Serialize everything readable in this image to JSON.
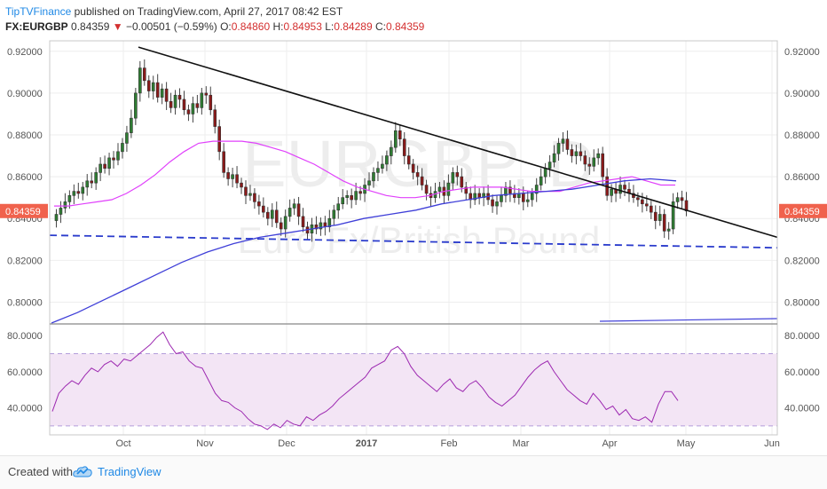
{
  "header": {
    "author": "TipTVFinance",
    "published": "published on TradingView.com, April 27, 2017 08:42 EST",
    "symbol": "FX:EURGBP",
    "last": "0.84359",
    "change": "−0.00501 (−0.59%)",
    "open_label": "O:",
    "open": "0.84860",
    "high_label": "H:",
    "high": "0.84953",
    "low_label": "L:",
    "low": "0.84289",
    "close_label": "C:",
    "close": "0.84359"
  },
  "watermark": {
    "symbol": "EURGBP, D",
    "name": "Euro Fx/British Pound"
  },
  "footer": {
    "created": "Created with",
    "brand": "TradingView"
  },
  "colors": {
    "up": "#2e7d32",
    "down": "#8b1a1a",
    "trendline": "#111111",
    "ma50": "#e040fb",
    "ma200": "#3f3fd8",
    "support": "#2a3bcc",
    "rsi": "#9c27b0",
    "price_tag": "#f0624d"
  },
  "chart_data": [
    {
      "type": "candlestick",
      "title": "FX:EURGBP, D",
      "x_ticks": [
        "Oct",
        "Nov",
        "Dec",
        "2017",
        "Feb",
        "Mar",
        "Apr",
        "May",
        "Jun"
      ],
      "y_ticks": [
        "0.80000",
        "0.82000",
        "0.84000",
        "0.86000",
        "0.88000",
        "0.90000",
        "0.92000"
      ],
      "ylim": [
        0.79,
        0.925
      ],
      "last_price_label": "0.84359",
      "close_series": [
        0.842,
        0.845,
        0.848,
        0.851,
        0.853,
        0.852,
        0.855,
        0.858,
        0.857,
        0.862,
        0.866,
        0.864,
        0.869,
        0.868,
        0.872,
        0.876,
        0.881,
        0.888,
        0.9,
        0.912,
        0.906,
        0.901,
        0.905,
        0.898,
        0.902,
        0.896,
        0.893,
        0.899,
        0.897,
        0.892,
        0.89,
        0.895,
        0.893,
        0.9,
        0.899,
        0.892,
        0.884,
        0.872,
        0.862,
        0.859,
        0.861,
        0.857,
        0.855,
        0.851,
        0.852,
        0.848,
        0.846,
        0.843,
        0.84,
        0.844,
        0.838,
        0.835,
        0.841,
        0.845,
        0.847,
        0.841,
        0.836,
        0.833,
        0.837,
        0.835,
        0.838,
        0.836,
        0.84,
        0.844,
        0.847,
        0.85,
        0.851,
        0.849,
        0.853,
        0.852,
        0.856,
        0.858,
        0.862,
        0.864,
        0.866,
        0.87,
        0.874,
        0.882,
        0.878,
        0.87,
        0.866,
        0.862,
        0.86,
        0.856,
        0.852,
        0.85,
        0.853,
        0.855,
        0.851,
        0.857,
        0.862,
        0.86,
        0.855,
        0.852,
        0.849,
        0.852,
        0.85,
        0.852,
        0.849,
        0.846,
        0.848,
        0.851,
        0.855,
        0.852,
        0.85,
        0.852,
        0.848,
        0.849,
        0.852,
        0.856,
        0.86,
        0.864,
        0.867,
        0.871,
        0.876,
        0.878,
        0.873,
        0.87,
        0.872,
        0.87,
        0.866,
        0.865,
        0.869,
        0.871,
        0.86,
        0.851,
        0.854,
        0.852,
        0.856,
        0.854,
        0.852,
        0.85,
        0.849,
        0.847,
        0.846,
        0.843,
        0.839,
        0.842,
        0.834,
        0.835,
        0.848,
        0.85,
        0.8486,
        0.84359
      ],
      "series": [
        {
          "name": "MA 50",
          "role": "ma50",
          "values": [
            0.846,
            0.846,
            0.847,
            0.848,
            0.849,
            0.852,
            0.856,
            0.861,
            0.867,
            0.872,
            0.876,
            0.877,
            0.877,
            0.877,
            0.876,
            0.874,
            0.872,
            0.869,
            0.866,
            0.862,
            0.858,
            0.855,
            0.853,
            0.851,
            0.85,
            0.85,
            0.851,
            0.853,
            0.854,
            0.855,
            0.855,
            0.855,
            0.854,
            0.853,
            0.853,
            0.853,
            0.855,
            0.857,
            0.858,
            0.859,
            0.86,
            0.858,
            0.856,
            0.856
          ]
        },
        {
          "name": "MA 200",
          "role": "ma200",
          "values": [
            0.79,
            0.795,
            0.801,
            0.807,
            0.813,
            0.819,
            0.824,
            0.828,
            0.831,
            0.833,
            0.835,
            0.837,
            0.84,
            0.842,
            0.844,
            0.847,
            0.849,
            0.851,
            0.852,
            0.853,
            0.854,
            0.856,
            0.858,
            0.859,
            0.858
          ]
        },
        {
          "name": "Trendline",
          "role": "trend",
          "values": [
            0.922,
            0.831
          ]
        },
        {
          "name": "Support",
          "role": "support",
          "values": [
            0.832,
            0.826
          ]
        }
      ]
    },
    {
      "type": "line",
      "title": "RSI",
      "y_ticks": [
        "40.0000",
        "60.0000",
        "80.0000"
      ],
      "ylim": [
        25,
        86
      ],
      "band": [
        30,
        70
      ],
      "series": [
        {
          "name": "RSI",
          "values": [
            38,
            48,
            52,
            55,
            53,
            58,
            62,
            60,
            64,
            66,
            63,
            67,
            66,
            69,
            72,
            75,
            79,
            82,
            75,
            70,
            71,
            66,
            63,
            62,
            55,
            48,
            44,
            43,
            40,
            38,
            34,
            31,
            30,
            28,
            31,
            29,
            33,
            31,
            30,
            35,
            33,
            36,
            38,
            41,
            45,
            48,
            51,
            54,
            57,
            62,
            64,
            66,
            72,
            74,
            70,
            63,
            58,
            55,
            52,
            49,
            53,
            56,
            51,
            49,
            53,
            55,
            51,
            46,
            43,
            41,
            44,
            47,
            52,
            57,
            61,
            64,
            66,
            60,
            55,
            50,
            47,
            44,
            42,
            48,
            44,
            39,
            41,
            36,
            39,
            34,
            33,
            35,
            32,
            42,
            49,
            49,
            44
          ]
        }
      ]
    }
  ]
}
